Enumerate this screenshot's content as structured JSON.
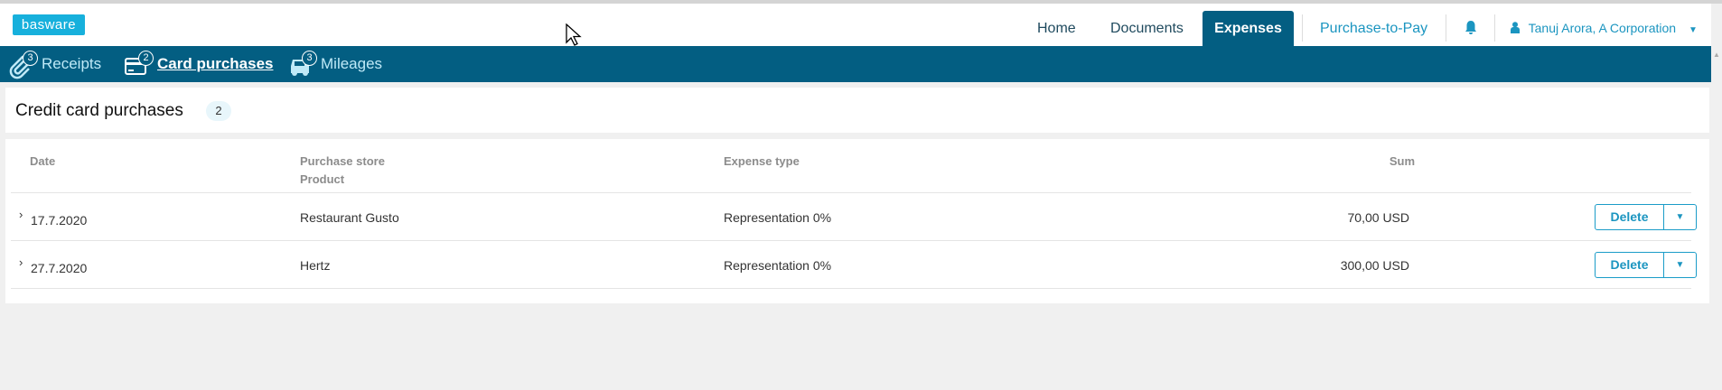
{
  "header": {
    "logo": "basware",
    "nav": [
      {
        "label": "Home"
      },
      {
        "label": "Documents"
      },
      {
        "label": "Expenses",
        "active": true
      },
      {
        "label": "Purchase-to-Pay"
      }
    ],
    "notifications_icon": "bell-icon",
    "user": "Tanuj Arora, A Corporation"
  },
  "subnav": [
    {
      "label": "Receipts",
      "badge": "3",
      "icon": "paperclip-icon"
    },
    {
      "label": "Card purchases",
      "badge": "2",
      "icon": "credit-card-icon",
      "active": true
    },
    {
      "label": "Mileages",
      "badge": "3",
      "icon": "car-icon"
    }
  ],
  "page": {
    "title": "Credit card purchases",
    "count": "2"
  },
  "table": {
    "headers": {
      "date": "Date",
      "store": "Purchase store",
      "product": "Product",
      "expense_type": "Expense type",
      "sum": "Sum"
    },
    "rows": [
      {
        "date": "17.7.2020",
        "store": "Restaurant Gusto",
        "expense_type": "Representation 0%",
        "sum": "70,00 USD",
        "action": "Delete"
      },
      {
        "date": "27.7.2020",
        "store": "Hertz",
        "expense_type": "Representation 0%",
        "sum": "300,00 USD",
        "action": "Delete"
      }
    ]
  },
  "colors": {
    "nav": "#035e82",
    "accent": "#1b95c0",
    "logo": "#17b0dc"
  }
}
